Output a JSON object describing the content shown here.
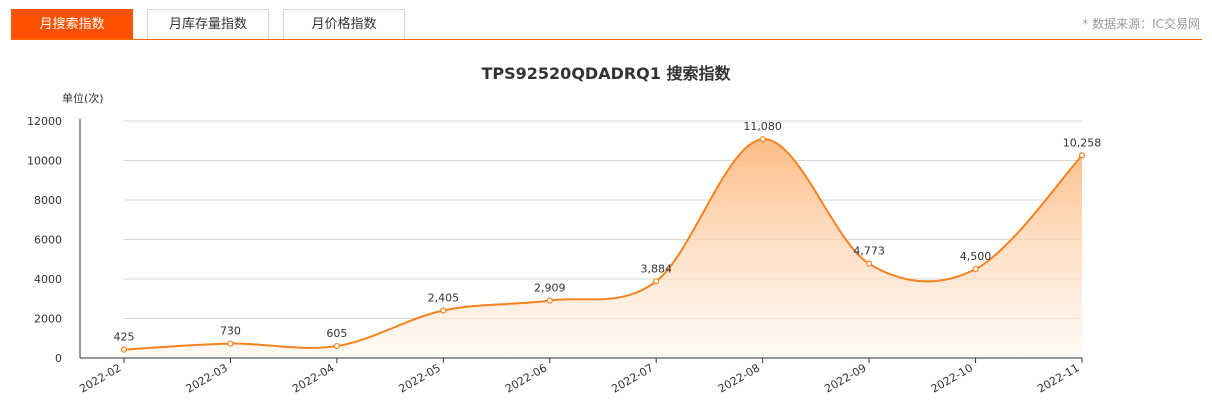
{
  "tabs": [
    {
      "label": "月搜索指数",
      "active": true
    },
    {
      "label": "月库存量指数",
      "active": false
    },
    {
      "label": "月价格指数",
      "active": false
    }
  ],
  "source_note": "* 数据来源：IC交易网",
  "chart_data": {
    "type": "area",
    "title": "TPS92520QDADRQ1 搜索指数",
    "ylabel": "单位(次)",
    "xlabel": "",
    "categories": [
      "2022-02",
      "2022-03",
      "2022-04",
      "2022-05",
      "2022-06",
      "2022-07",
      "2022-08",
      "2022-09",
      "2022-10",
      "2022-11"
    ],
    "values": [
      425,
      730,
      605,
      2405,
      2909,
      3884,
      11080,
      4773,
      4500,
      10258
    ],
    "data_labels": [
      "425",
      "730",
      "605",
      "2,405",
      "2,909",
      "3,884",
      "11,080",
      "4,773",
      "4,500",
      "10,258"
    ],
    "ylim": [
      0,
      12000
    ],
    "yticks": [
      0,
      2000,
      4000,
      6000,
      8000,
      10000,
      12000
    ],
    "grid": true,
    "smooth": true,
    "colors": {
      "line": "#f5821f",
      "area_top": "#fdb97f",
      "area_bottom": "#fff6ee"
    }
  }
}
